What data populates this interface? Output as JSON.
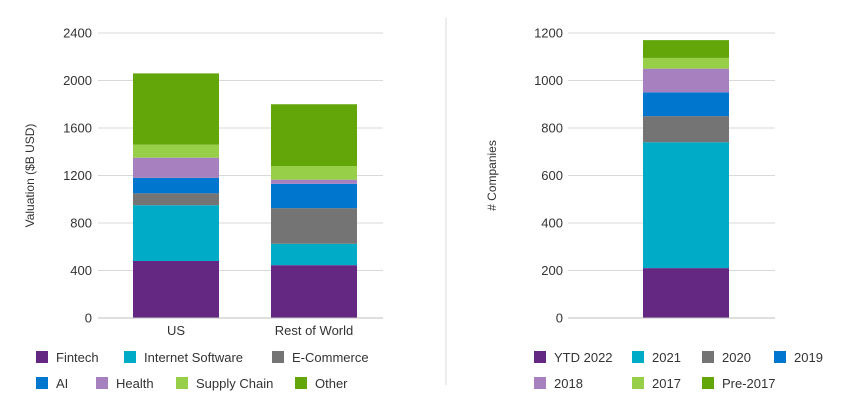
{
  "chart_data": [
    {
      "type": "bar",
      "stacked": true,
      "ylabel": "Valuation ($B USD)",
      "ylim": [
        0,
        2400
      ],
      "yticks": [
        0,
        400,
        800,
        1200,
        1600,
        2000,
        2400
      ],
      "grid": true,
      "legend_position": "bottom",
      "categories": [
        "US",
        "Rest of World"
      ],
      "series": [
        {
          "name": "Fintech",
          "color": "#642882",
          "values": [
            480,
            445
          ]
        },
        {
          "name": "Internet Software",
          "color": "#00ABC7",
          "values": [
            470,
            180
          ]
        },
        {
          "name": "E-Commerce",
          "color": "#747474",
          "values": [
            100,
            300
          ]
        },
        {
          "name": "AI",
          "color": "#0076CE",
          "values": [
            130,
            205
          ]
        },
        {
          "name": "Health",
          "color": "#A781BF",
          "values": [
            170,
            35
          ]
        },
        {
          "name": "Supply Chain",
          "color": "#97D048",
          "values": [
            110,
            115
          ]
        },
        {
          "name": "Other",
          "color": "#62A60A",
          "values": [
            600,
            520
          ]
        }
      ]
    },
    {
      "type": "bar",
      "stacked": true,
      "ylabel": "# Companies",
      "ylim": [
        0,
        1200
      ],
      "yticks": [
        0,
        200,
        400,
        600,
        800,
        1000,
        1200
      ],
      "grid": true,
      "legend_position": "bottom",
      "categories": [
        ""
      ],
      "series": [
        {
          "name": "YTD 2022",
          "color": "#642882",
          "values": [
            210
          ]
        },
        {
          "name": "2021",
          "color": "#00ABC7",
          "values": [
            530
          ]
        },
        {
          "name": "2020",
          "color": "#747474",
          "values": [
            110
          ]
        },
        {
          "name": "2019",
          "color": "#0076CE",
          "values": [
            100
          ]
        },
        {
          "name": "2018",
          "color": "#A781BF",
          "values": [
            100
          ]
        },
        {
          "name": "2017",
          "color": "#97D048",
          "values": [
            45
          ]
        },
        {
          "name": "Pre-2017",
          "color": "#62A60A",
          "values": [
            75
          ]
        }
      ]
    }
  ]
}
